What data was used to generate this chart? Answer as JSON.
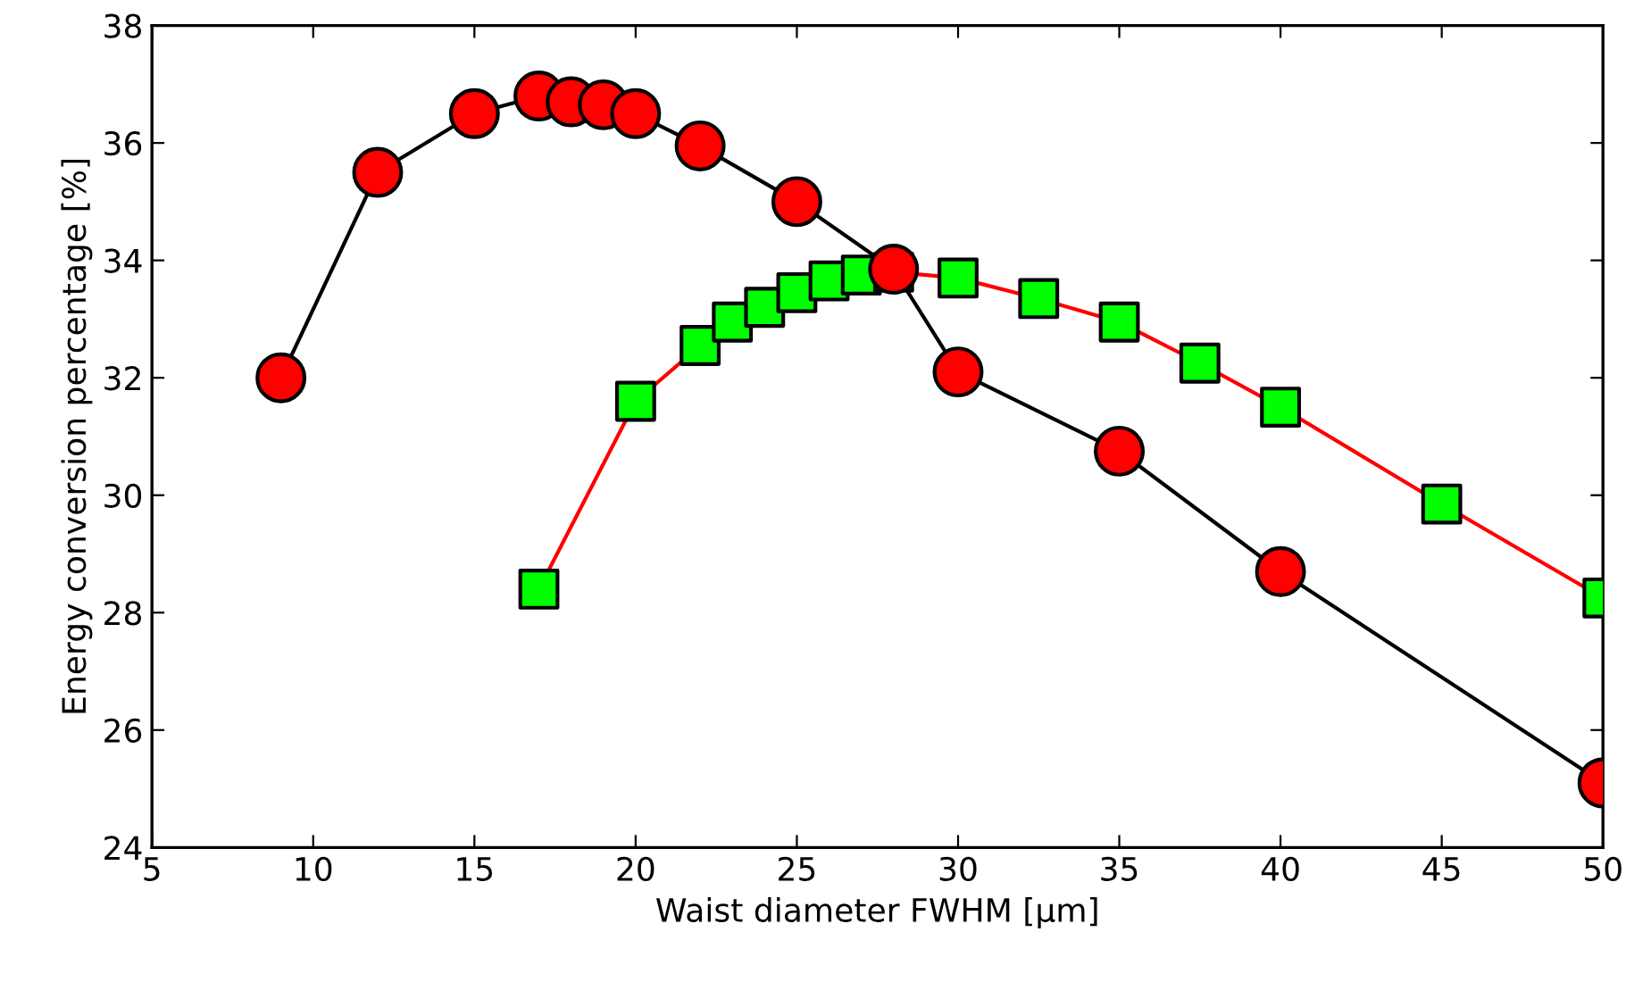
{
  "chart_data": {
    "type": "line",
    "xlabel": "Waist diameter FWHM [μm]",
    "ylabel": "Energy conversion percentage [%]",
    "xlim": [
      5,
      50
    ],
    "xticks": [
      5,
      10,
      15,
      20,
      25,
      30,
      35,
      40,
      45,
      50
    ],
    "ylim": [
      24,
      38
    ],
    "yticks": [
      24,
      26,
      28,
      30,
      32,
      34,
      36,
      38
    ],
    "grid": false,
    "legend": false,
    "line_style": "solid",
    "series": [
      {
        "x": [
          9,
          12,
          15,
          17,
          18,
          19,
          20,
          22,
          25,
          28,
          30,
          35,
          40,
          50
        ],
        "values": [
          32.0,
          35.5,
          36.5,
          36.8,
          36.7,
          36.65,
          36.5,
          35.95,
          35.0,
          33.85,
          32.1,
          30.75,
          28.7,
          25.1
        ],
        "color": "#000000",
        "colors": [
          "#ff0000",
          "#ff0000",
          "#ff0000",
          "#ff0000",
          "#ff0000",
          "#ff0000",
          "#ff0000",
          "#ff0000",
          "#ff0000",
          "#ff0000",
          "#ff0000",
          "#ff0000",
          "#ff0000",
          "#ff0000"
        ],
        "marker": "circle"
      },
      {
        "x": [
          17,
          20,
          22,
          23,
          24,
          25,
          26,
          27,
          28,
          30,
          32.5,
          35,
          37.5,
          40,
          45,
          50
        ],
        "values": [
          28.4,
          31.6,
          32.55,
          32.95,
          33.2,
          33.45,
          33.65,
          33.75,
          33.8,
          33.7,
          33.35,
          32.95,
          32.25,
          31.5,
          29.85,
          28.25
        ],
        "color": "#ff0000",
        "colors": [
          "#00ff00",
          "#00ff00",
          "#00ff00",
          "#00ff00",
          "#00ff00",
          "#00ff00",
          "#00ff00",
          "#00ff00",
          "#00ff00",
          "#00ff00",
          "#00ff00",
          "#00ff00",
          "#00ff00",
          "#00ff00",
          "#00ff00",
          "#00ff00"
        ],
        "marker": "square"
      }
    ]
  }
}
